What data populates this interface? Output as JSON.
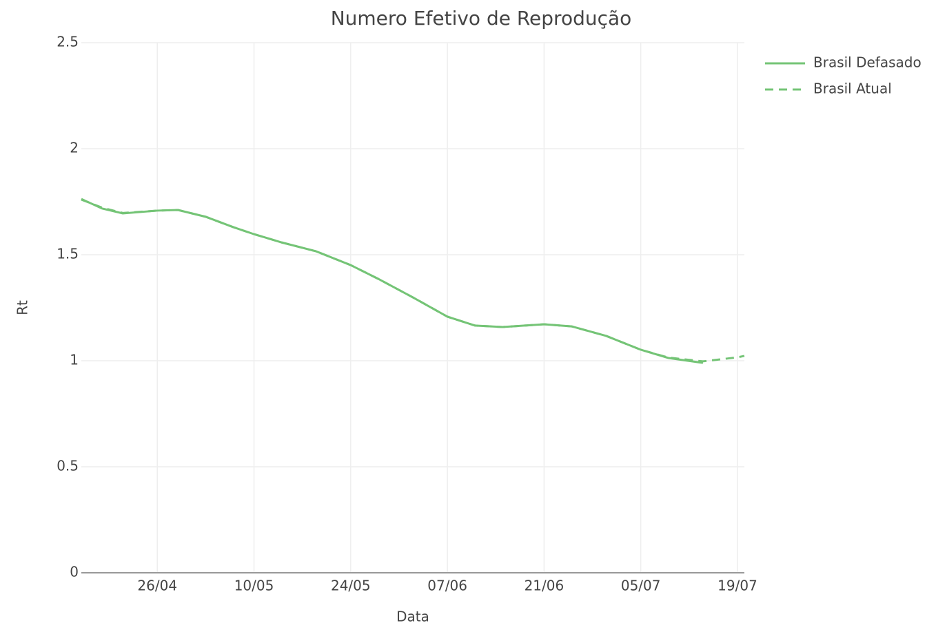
{
  "chart_data": {
    "type": "line",
    "title": "Numero Efetivo de Reprodução",
    "x_label": "Data",
    "y_label": "Rt",
    "x": [
      "15/04",
      "18/04",
      "21/04",
      "26/04",
      "29/04",
      "03/05",
      "07/05",
      "10/05",
      "14/05",
      "19/05",
      "24/05",
      "28/05",
      "02/06",
      "07/06",
      "11/06",
      "15/06",
      "21/06",
      "25/06",
      "30/06",
      "05/07",
      "09/07",
      "14/07",
      "19/07",
      "20/07"
    ],
    "series": [
      {
        "name": "Brasil Defasado",
        "color": "#74c476",
        "dash": "solid",
        "values": [
          1.763,
          1.718,
          1.695,
          1.708,
          1.711,
          1.679,
          1.63,
          1.597,
          1.558,
          1.516,
          1.451,
          1.386,
          1.299,
          1.208,
          1.166,
          1.159,
          1.172,
          1.162,
          1.117,
          1.052,
          1.013,
          0.99,
          null,
          null
        ]
      },
      {
        "name": "Brasil Atual",
        "color": "#74c476",
        "dash": "dashed",
        "values": [
          1.76,
          1.722,
          1.697,
          1.708,
          1.711,
          1.679,
          1.63,
          1.597,
          1.558,
          1.516,
          1.451,
          1.386,
          1.299,
          1.208,
          1.166,
          1.159,
          1.172,
          1.162,
          1.117,
          1.052,
          1.015,
          0.997,
          1.016,
          1.023
        ]
      }
    ],
    "xlim": [
      "15/04",
      "20/07"
    ],
    "xticks": [
      "26/04",
      "10/05",
      "24/05",
      "07/06",
      "21/06",
      "05/07",
      "19/07"
    ],
    "ylim": [
      0,
      2.5
    ],
    "yticks": [
      0,
      0.5,
      1,
      1.5,
      2,
      2.5
    ],
    "grid": true,
    "legend": "top-right"
  }
}
